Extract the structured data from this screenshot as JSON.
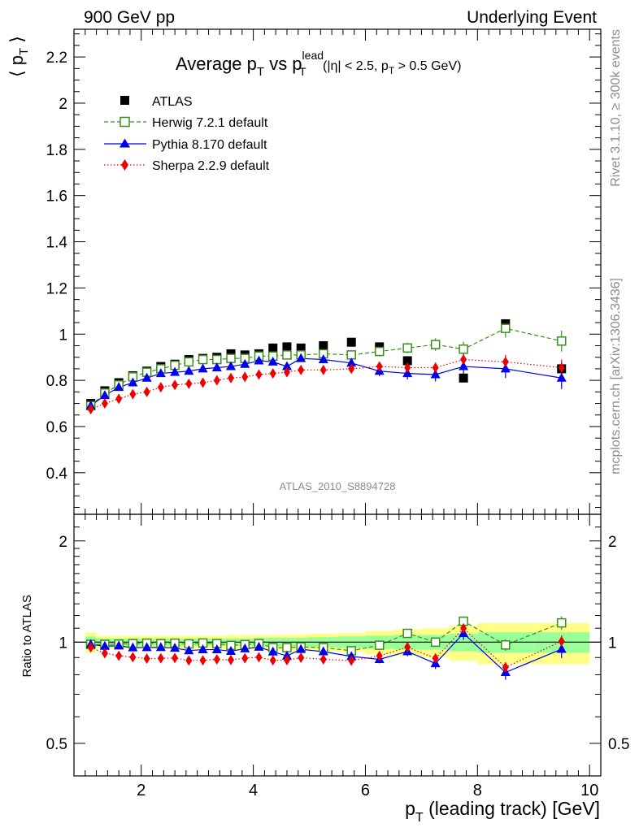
{
  "header": {
    "left": "900 GeV pp",
    "right": "Underlying Event"
  },
  "sidebar": {
    "rivet": "Rivet 3.1.10, ≥ 300k events",
    "mcplots": "mcplots.cern.ch [arXiv:1306.3436]"
  },
  "watermark": "ATLAS_2010_S8894728",
  "colors": {
    "atlas": "#000000",
    "herwig": "#3a8f1a",
    "pythia": "#0000ee",
    "sherpa": "#ee0000",
    "band_inner": "#99ff99",
    "band_outer": "#ffff88"
  },
  "chart_data": [
    {
      "type": "scatter",
      "title": "Average pT vs pTlead (|η| < 2.5, pT > 0.5 GeV)",
      "title_parts": {
        "main": "Average p",
        "sub1": "T",
        "vs": " vs p",
        "sup": "lead",
        "sub2": "T",
        "cut1": " (|η| < 2.5, p",
        "sub3": "T",
        "cut2": " > 0.5 GeV)"
      },
      "ylabel": "⟨ pT ⟩",
      "ylabel_parts": {
        "main": "⟨ p",
        "sub": "T",
        "end": " ⟩"
      },
      "xlim": [
        0.8,
        10.2
      ],
      "ylim": [
        0.22,
        2.32
      ],
      "xticks": [
        2,
        4,
        6,
        8,
        10
      ],
      "yticks": [
        "0.4",
        "0.6",
        "0.8",
        "1",
        "1.2",
        "1.4",
        "1.6",
        "1.8",
        "2",
        "2.2"
      ],
      "legend_position": "top-left",
      "x": [
        1.1,
        1.35,
        1.6,
        1.85,
        2.1,
        2.35,
        2.6,
        2.85,
        3.1,
        3.35,
        3.6,
        3.85,
        4.1,
        4.35,
        4.6,
        4.85,
        5.25,
        5.75,
        6.25,
        6.75,
        7.25,
        7.75,
        8.5,
        9.5
      ],
      "series": [
        {
          "name": "ATLAS",
          "style": "data",
          "values": [
            0.7,
            0.755,
            0.79,
            0.82,
            0.84,
            0.86,
            0.87,
            0.89,
            0.895,
            0.9,
            0.915,
            0.91,
            0.915,
            0.94,
            0.945,
            0.94,
            0.95,
            0.965,
            0.945,
            0.885,
            0.955,
            0.81,
            1.045,
            0.85
          ]
        },
        {
          "name": "Herwig 7.2.1 default",
          "style": "dashed-open-square",
          "values": [
            0.69,
            0.745,
            0.78,
            0.815,
            0.835,
            0.85,
            0.865,
            0.88,
            0.89,
            0.89,
            0.895,
            0.895,
            0.905,
            0.905,
            0.91,
            0.91,
            0.915,
            0.91,
            0.925,
            0.94,
            0.955,
            0.935,
            1.025,
            0.97
          ],
          "errors": [
            0.005,
            0.005,
            0.005,
            0.005,
            0.005,
            0.006,
            0.006,
            0.007,
            0.007,
            0.008,
            0.008,
            0.009,
            0.01,
            0.01,
            0.011,
            0.012,
            0.014,
            0.017,
            0.02,
            0.023,
            0.027,
            0.032,
            0.04,
            0.045
          ]
        },
        {
          "name": "Pythia 8.170 default",
          "style": "solid-triangle",
          "values": [
            0.69,
            0.735,
            0.77,
            0.79,
            0.81,
            0.83,
            0.835,
            0.84,
            0.85,
            0.855,
            0.86,
            0.87,
            0.885,
            0.88,
            0.86,
            0.895,
            0.89,
            0.875,
            0.84,
            0.83,
            0.825,
            0.86,
            0.85,
            0.81
          ],
          "errors": [
            0.005,
            0.005,
            0.005,
            0.005,
            0.005,
            0.006,
            0.006,
            0.007,
            0.007,
            0.008,
            0.009,
            0.01,
            0.011,
            0.012,
            0.013,
            0.014,
            0.016,
            0.019,
            0.022,
            0.026,
            0.03,
            0.035,
            0.04,
            0.048
          ]
        },
        {
          "name": "Sherpa 2.2.9 default",
          "style": "dotted-diamond",
          "values": [
            0.675,
            0.7,
            0.72,
            0.74,
            0.75,
            0.77,
            0.78,
            0.785,
            0.79,
            0.8,
            0.81,
            0.815,
            0.825,
            0.83,
            0.835,
            0.845,
            0.845,
            0.85,
            0.86,
            0.855,
            0.855,
            0.89,
            0.88,
            0.855
          ],
          "errors": [
            0.005,
            0.005,
            0.005,
            0.005,
            0.005,
            0.005,
            0.006,
            0.006,
            0.007,
            0.007,
            0.008,
            0.008,
            0.009,
            0.01,
            0.011,
            0.012,
            0.013,
            0.015,
            0.017,
            0.019,
            0.022,
            0.025,
            0.03,
            0.035
          ]
        }
      ]
    },
    {
      "type": "line",
      "ylabel": "Ratio to ATLAS",
      "xlabel": "pT (leading track) [GeV]",
      "xlabel_parts": {
        "main": "p",
        "sub": "T",
        "end": " (leading track) [GeV]"
      },
      "xlim": [
        0.8,
        10.2
      ],
      "ylim": [
        0.4,
        2.4
      ],
      "log_scale_y": true,
      "xticks": [
        "2",
        "4",
        "6",
        "8",
        "10"
      ],
      "yticks": [
        "0.5",
        "1",
        "2"
      ],
      "band_edges": [
        1.0,
        1.2,
        1.5,
        1.75,
        2.0,
        2.25,
        2.5,
        2.75,
        3.0,
        3.25,
        3.5,
        3.75,
        4.0,
        4.25,
        4.5,
        4.75,
        5.0,
        5.5,
        6.0,
        6.5,
        7.0,
        7.5,
        8.0,
        9.0,
        10.0
      ],
      "band_inner": [
        0.04,
        0.025,
        0.025,
        0.025,
        0.025,
        0.025,
        0.025,
        0.025,
        0.025,
        0.025,
        0.025,
        0.025,
        0.03,
        0.03,
        0.03,
        0.03,
        0.035,
        0.04,
        0.045,
        0.05,
        0.05,
        0.06,
        0.07,
        0.07
      ],
      "band_outer": [
        0.07,
        0.045,
        0.045,
        0.045,
        0.045,
        0.045,
        0.045,
        0.045,
        0.045,
        0.045,
        0.05,
        0.05,
        0.05,
        0.05,
        0.055,
        0.055,
        0.06,
        0.065,
        0.08,
        0.09,
        0.1,
        0.12,
        0.14,
        0.14
      ],
      "series": [
        {
          "name": "Herwig 7.2.1 default",
          "values": [
            0.985,
            0.985,
            0.987,
            0.99,
            0.993,
            0.99,
            0.993,
            0.988,
            0.994,
            0.99,
            0.978,
            0.983,
            0.99,
            0.963,
            0.963,
            0.968,
            0.963,
            0.943,
            0.979,
            1.062,
            1.0,
            1.154,
            0.981,
            1.141
          ]
        },
        {
          "name": "Pythia 8.170 default",
          "values": [
            0.985,
            0.973,
            0.975,
            0.963,
            0.964,
            0.965,
            0.96,
            0.944,
            0.95,
            0.95,
            0.94,
            0.956,
            0.967,
            0.936,
            0.91,
            0.952,
            0.937,
            0.907,
            0.889,
            0.938,
            0.864,
            1.062,
            0.813,
            0.953
          ]
        },
        {
          "name": "Sherpa 2.2.9 default",
          "values": [
            0.964,
            0.927,
            0.911,
            0.902,
            0.893,
            0.895,
            0.897,
            0.882,
            0.883,
            0.889,
            0.885,
            0.896,
            0.902,
            0.883,
            0.884,
            0.899,
            0.889,
            0.881,
            0.91,
            0.966,
            0.895,
            1.099,
            0.842,
            1.006
          ]
        }
      ],
      "series_errors": [
        [
          0.008,
          0.008,
          0.008,
          0.008,
          0.008,
          0.008,
          0.008,
          0.008,
          0.009,
          0.009,
          0.009,
          0.01,
          0.011,
          0.011,
          0.012,
          0.013,
          0.015,
          0.018,
          0.021,
          0.026,
          0.028,
          0.04,
          0.038,
          0.053
        ],
        [
          0.008,
          0.008,
          0.008,
          0.008,
          0.008,
          0.008,
          0.008,
          0.008,
          0.009,
          0.01,
          0.01,
          0.011,
          0.012,
          0.013,
          0.014,
          0.015,
          0.017,
          0.02,
          0.024,
          0.03,
          0.032,
          0.045,
          0.04,
          0.057
        ],
        [
          0.007,
          0.007,
          0.007,
          0.007,
          0.007,
          0.007,
          0.007,
          0.007,
          0.008,
          0.008,
          0.009,
          0.009,
          0.01,
          0.011,
          0.012,
          0.013,
          0.014,
          0.016,
          0.018,
          0.022,
          0.024,
          0.031,
          0.029,
          0.041
        ]
      ]
    }
  ]
}
